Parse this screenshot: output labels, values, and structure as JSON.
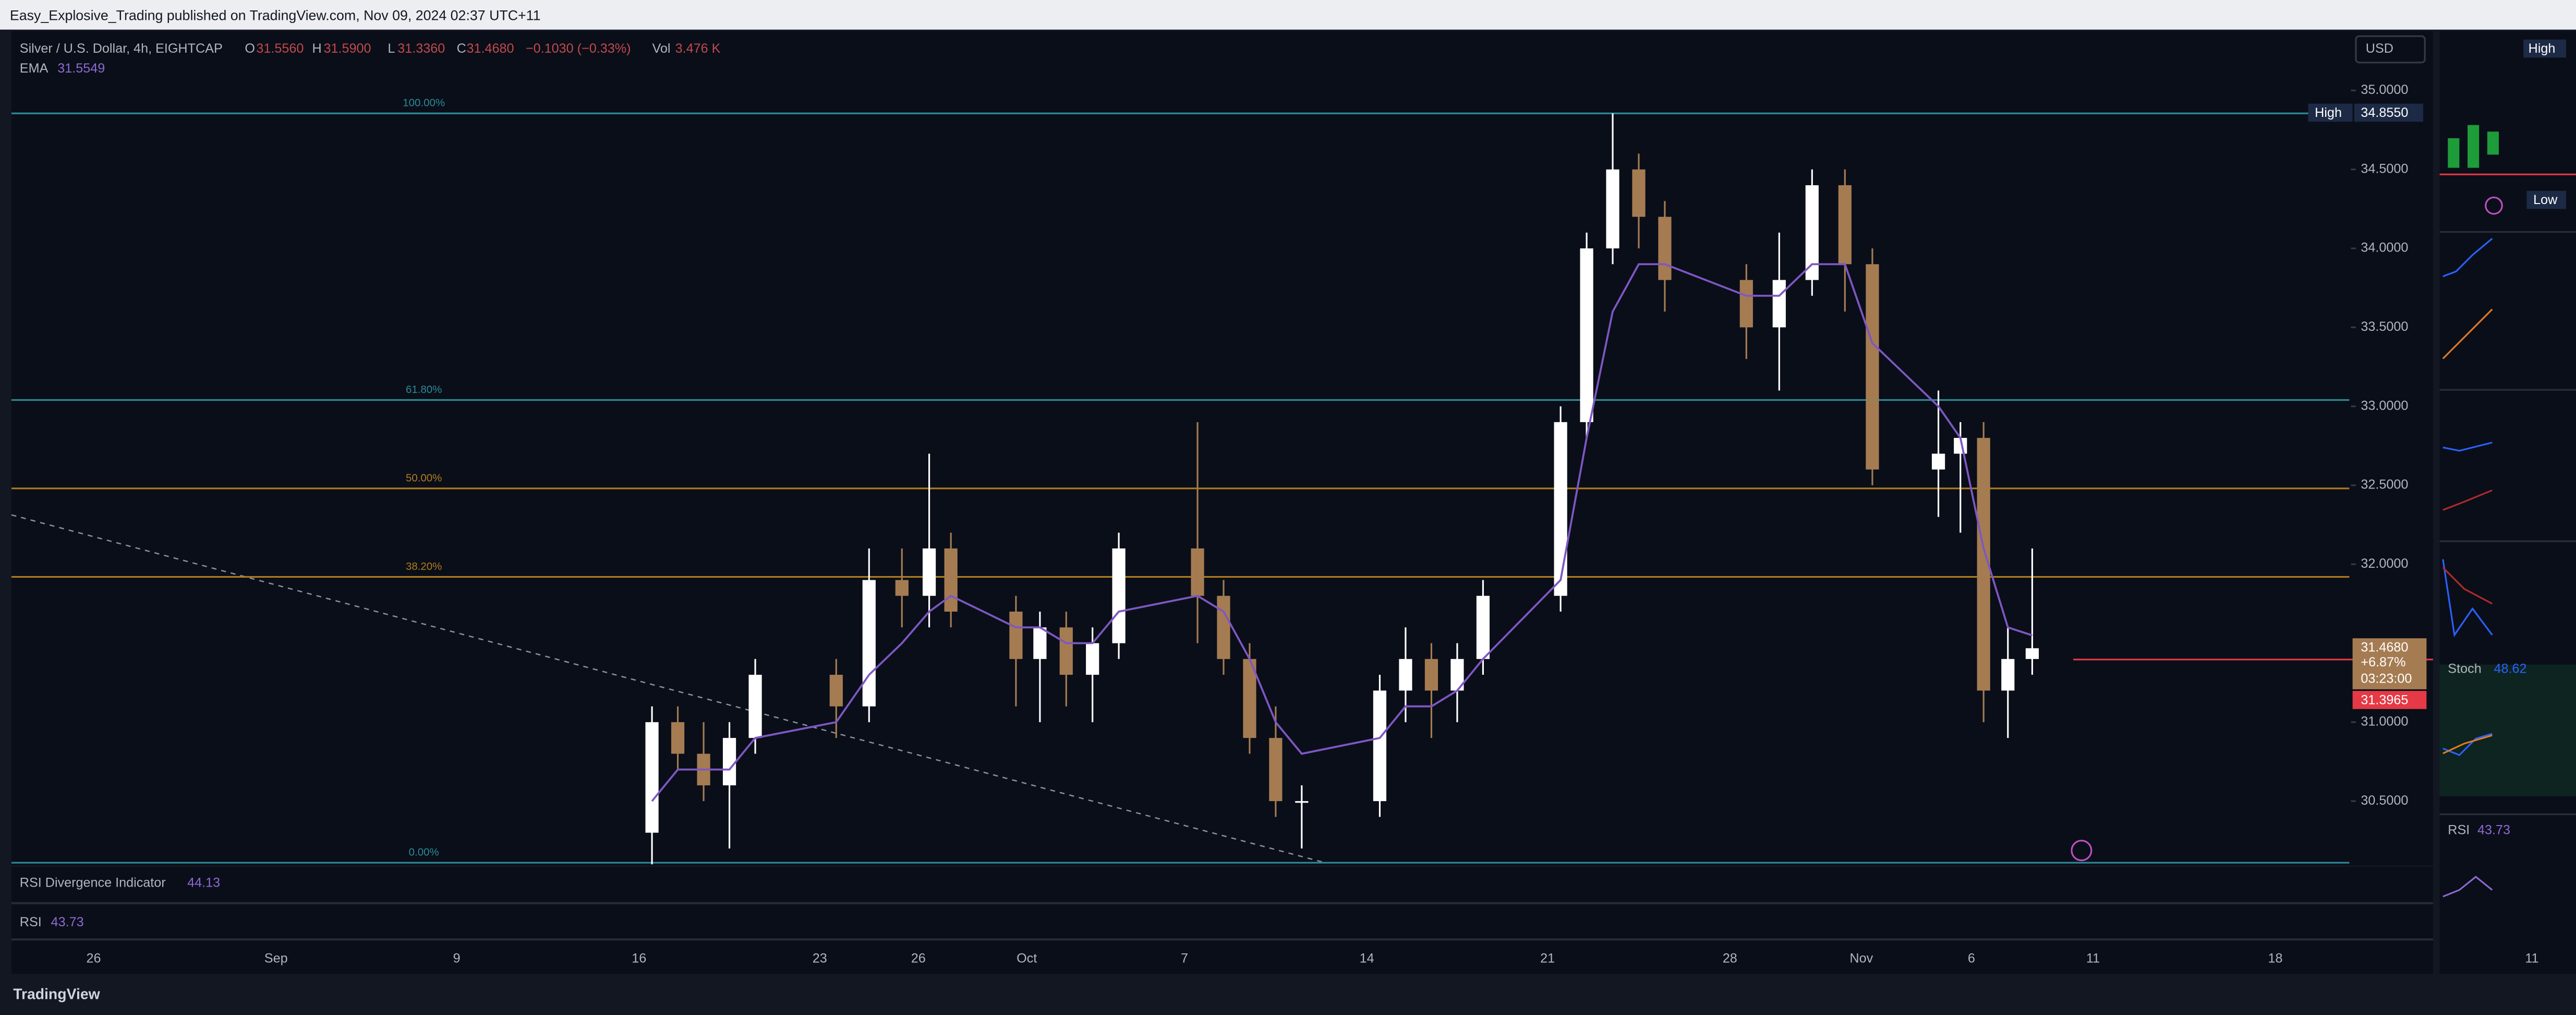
{
  "header": {
    "title": "Easy_Explosive_Trading published on TradingView.com, Nov 09, 2024 02:37 UTC+11"
  },
  "chart_data": {
    "type": "candlestick",
    "symbol": "Silver / U.S. Dollar, 4h, EIGHTCAP",
    "ohlc_legend": {
      "o_label": "O",
      "o": "31.5560",
      "h_label": "H",
      "h": "31.5900",
      "l_label": "L",
      "l": "31.3360",
      "c_label": "C",
      "c": "31.4680",
      "change": "−0.1030 (−0.33%)",
      "vol_label": "Vol",
      "vol": "3.476 K"
    },
    "currency": "USD",
    "up_color": "#ffffff",
    "down_color": "#a57c52",
    "x": [
      "2024-09-16",
      "2024-09-17",
      "2024-09-18",
      "2024-09-19",
      "2024-09-20",
      "2024-09-23",
      "2024-09-24",
      "2024-09-25",
      "2024-09-26",
      "2024-09-27",
      "2024-09-30",
      "2024-10-01",
      "2024-10-02",
      "2024-10-03",
      "2024-10-04",
      "2024-10-07",
      "2024-10-08",
      "2024-10-09",
      "2024-10-10",
      "2024-10-11",
      "2024-10-14",
      "2024-10-15",
      "2024-10-16",
      "2024-10-17",
      "2024-10-18",
      "2024-10-21",
      "2024-10-22",
      "2024-10-23",
      "2024-10-24",
      "2024-10-25",
      "2024-10-28",
      "2024-10-29",
      "2024-10-30",
      "2024-10-31",
      "2024-11-01",
      "2024-11-04",
      "2024-11-05",
      "2024-11-06",
      "2024-11-07",
      "2024-11-08"
    ],
    "open": [
      30.3,
      31.0,
      30.8,
      30.6,
      30.9,
      31.3,
      31.1,
      31.9,
      31.8,
      32.1,
      31.7,
      31.4,
      31.6,
      31.3,
      31.5,
      32.1,
      31.8,
      31.4,
      30.9,
      30.5,
      30.5,
      31.2,
      31.4,
      31.2,
      31.4,
      31.8,
      32.9,
      34.0,
      34.5,
      34.2,
      33.8,
      33.5,
      33.8,
      34.4,
      33.9,
      32.6,
      32.7,
      32.8,
      31.2,
      31.4
    ],
    "high": [
      31.1,
      31.1,
      31.0,
      31.0,
      31.4,
      31.4,
      32.1,
      32.1,
      32.7,
      32.2,
      31.8,
      31.7,
      31.7,
      31.6,
      32.2,
      32.9,
      31.9,
      31.5,
      31.1,
      30.6,
      31.3,
      31.6,
      31.5,
      31.5,
      31.9,
      33.0,
      34.1,
      34.855,
      34.6,
      34.3,
      33.9,
      34.1,
      34.5,
      34.5,
      34.0,
      33.1,
      32.9,
      32.9,
      31.6,
      32.1
    ],
    "low": [
      30.1,
      30.7,
      30.5,
      30.2,
      30.8,
      30.9,
      31.0,
      31.6,
      31.6,
      31.6,
      31.1,
      31.0,
      31.1,
      31.0,
      31.4,
      31.5,
      31.3,
      30.8,
      30.4,
      30.2,
      30.4,
      31.0,
      30.9,
      31.0,
      31.3,
      31.7,
      32.8,
      33.9,
      34.0,
      33.6,
      33.3,
      33.1,
      33.7,
      33.6,
      32.5,
      32.3,
      32.2,
      31.0,
      30.9,
      31.3
    ],
    "close": [
      31.0,
      30.8,
      30.6,
      30.9,
      31.3,
      31.1,
      31.9,
      31.8,
      32.1,
      31.7,
      31.4,
      31.6,
      31.3,
      31.5,
      32.1,
      31.8,
      31.4,
      30.9,
      30.5,
      30.5,
      31.2,
      31.4,
      31.2,
      31.4,
      31.8,
      32.9,
      34.0,
      34.5,
      34.2,
      33.8,
      33.5,
      33.8,
      34.4,
      33.9,
      32.6,
      32.7,
      32.8,
      31.2,
      31.4,
      31.468
    ],
    "ema": {
      "name": "EMA",
      "color": "#7e57c2",
      "legend_value": "31.5549",
      "values": [
        30.5,
        30.7,
        30.7,
        30.7,
        30.9,
        31.0,
        31.3,
        31.5,
        31.7,
        31.8,
        31.6,
        31.6,
        31.5,
        31.5,
        31.7,
        31.8,
        31.7,
        31.4,
        31.0,
        30.8,
        30.9,
        31.1,
        31.1,
        31.2,
        31.4,
        31.9,
        32.8,
        33.6,
        33.9,
        33.9,
        33.7,
        33.7,
        33.9,
        33.9,
        33.4,
        33.0,
        32.8,
        32.1,
        31.6,
        31.55
      ]
    },
    "ylim": [
      30.104,
      35.375
    ],
    "yticks": [
      {
        "value": 35,
        "label": "35.0000"
      },
      {
        "value": 34.5,
        "label": "34.5000"
      },
      {
        "value": 34,
        "label": "34.0000"
      },
      {
        "value": 33.5,
        "label": "33.5000"
      },
      {
        "value": 33,
        "label": "33.0000"
      },
      {
        "value": 32.5,
        "label": "32.5000"
      },
      {
        "value": 32,
        "label": "32.0000"
      },
      {
        "value": 31,
        "label": "31.0000"
      },
      {
        "value": 30.5,
        "label": "30.5000"
      }
    ],
    "xticks": [
      {
        "value": "2024-08-26",
        "label": "26"
      },
      {
        "value": "2024-09-01",
        "label": "Sep"
      },
      {
        "value": "2024-09-09",
        "label": "9"
      },
      {
        "value": "2024-09-16",
        "label": "16"
      },
      {
        "value": "2024-09-23",
        "label": "23"
      },
      {
        "value": "2024-09-26",
        "label": "26"
      },
      {
        "value": "2024-10-01",
        "label": "Oct"
      },
      {
        "value": "2024-10-07",
        "label": "7"
      },
      {
        "value": "2024-10-14",
        "label": "14"
      },
      {
        "value": "2024-10-21",
        "label": "21"
      },
      {
        "value": "2024-10-28",
        "label": "28"
      },
      {
        "value": "2024-11-01",
        "label": "Nov"
      },
      {
        "value": "2024-11-06",
        "label": "6"
      },
      {
        "value": "2024-11-11",
        "label": "11"
      },
      {
        "value": "2024-11-18",
        "label": "18"
      }
    ],
    "fib": [
      {
        "label": "100.00%",
        "price": 34.855,
        "color": "#2b8a96"
      },
      {
        "label": "61.80%",
        "price": 33.04,
        "color": "#2b8a96"
      },
      {
        "label": "50.00%",
        "price": 32.48,
        "color": "#b07d1c"
      },
      {
        "label": "38.20%",
        "price": 31.92,
        "color": "#b07d1c"
      },
      {
        "label": "0.00%",
        "price": 30.11,
        "color": "#2b8a96"
      }
    ],
    "price_tags": {
      "high_label": "High",
      "high_value": "34.8550",
      "last": "31.4680",
      "change": "+6.87%",
      "countdown": "03:23:00",
      "red_line": 31.3965
    },
    "indicators": [
      {
        "name": "RSI Divergence Indicator",
        "value": "44.13"
      },
      {
        "name": "RSI",
        "value": "43.73"
      }
    ],
    "side_panels": {
      "high": "High",
      "low": "Low",
      "stoch_name": "Stoch",
      "stoch_value": "48.62",
      "rsi_name": "RSI",
      "rsi_value": "43.73",
      "x_label": "11"
    }
  },
  "footer": {
    "brand": "TradingView"
  }
}
